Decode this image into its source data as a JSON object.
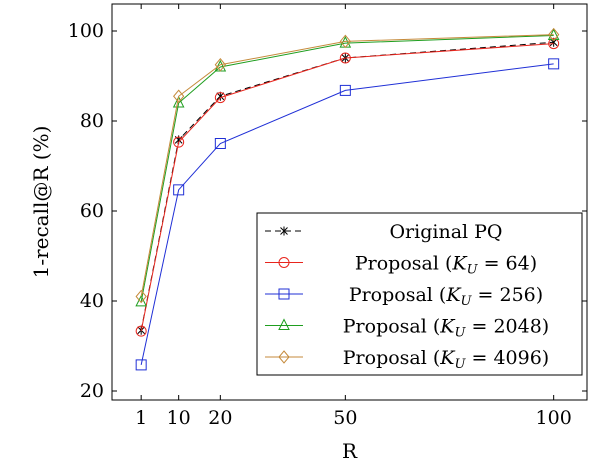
{
  "chart_data": {
    "type": "line",
    "title": "",
    "xlabel": "R",
    "ylabel": "1-recall@R (%)",
    "xlim": [
      -6,
      108
    ],
    "ylim": [
      18,
      106
    ],
    "xticks": [
      1,
      10,
      20,
      50,
      100
    ],
    "yticks": [
      20,
      40,
      60,
      80,
      100
    ],
    "grid": false,
    "legend_position": "bottom-right",
    "x": [
      1,
      10,
      20,
      50,
      100
    ],
    "series": [
      {
        "name": "Original PQ",
        "name_parts": [
          "Original PQ"
        ],
        "color": "#000000",
        "dash": true,
        "marker": "star",
        "values": [
          33.5,
          75.8,
          85.5,
          94.0,
          97.5
        ]
      },
      {
        "name": "Proposal (K_U = 64)",
        "name_parts": [
          "Proposal (",
          "K",
          "U",
          " = 64)"
        ],
        "color": "#e8251d",
        "dash": false,
        "marker": "circle",
        "values": [
          33.3,
          75.3,
          85.2,
          94.0,
          97.2
        ]
      },
      {
        "name": "Proposal (K_U = 256)",
        "name_parts": [
          "Proposal (",
          "K",
          "U",
          " = 256)"
        ],
        "color": "#1f2fd6",
        "dash": false,
        "marker": "square",
        "values": [
          25.8,
          64.7,
          75.0,
          86.8,
          92.7
        ]
      },
      {
        "name": "Proposal (K_U = 2048)",
        "name_parts": [
          "Proposal (",
          "K",
          "U",
          " = 2048)"
        ],
        "color": "#1f9e1f",
        "dash": false,
        "marker": "triangle",
        "values": [
          39.8,
          84.0,
          92.0,
          97.3,
          99.0
        ]
      },
      {
        "name": "Proposal (K_U = 4096)",
        "name_parts": [
          "Proposal (",
          "K",
          "U",
          " = 4096)"
        ],
        "color": "#c58a3b",
        "dash": false,
        "marker": "diamond",
        "values": [
          41.0,
          85.5,
          92.5,
          97.7,
          99.2
        ]
      }
    ]
  }
}
